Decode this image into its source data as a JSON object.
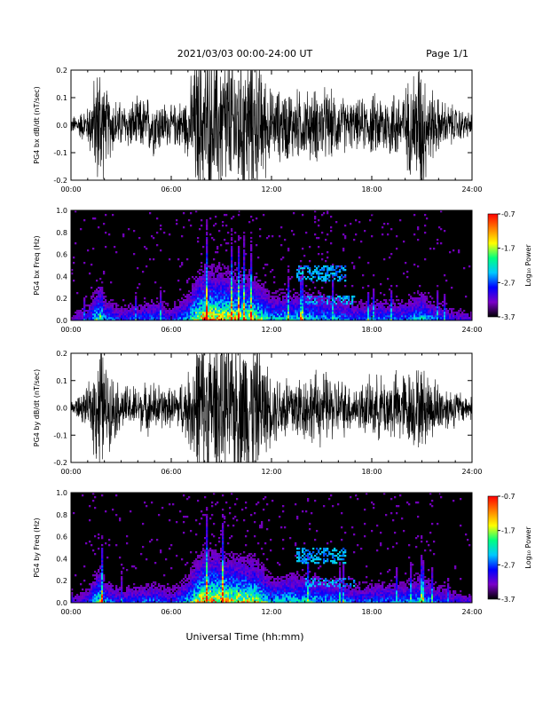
{
  "header": {
    "title": "2021/03/03  00:00-24:00 UT",
    "page": "Page 1/1"
  },
  "footer": {
    "xlabel": "Universal Time (hh:mm)"
  },
  "colors": {
    "background": "#000000",
    "trace": "#000000",
    "colormap": [
      "#000000",
      "#7a00c8",
      "#0000ff",
      "#00c8ff",
      "#00ff80",
      "#ffff00",
      "#ff8000",
      "#ff0000"
    ]
  },
  "chart_data": [
    {
      "type": "line",
      "ylabel": "PG4 bx dB/dt (nT/sec)",
      "xlim": [
        "00:00",
        "24:00"
      ],
      "ylim": [
        -0.2,
        0.2
      ],
      "x_ticks": [
        "00:00",
        "06:00",
        "12:00",
        "18:00",
        "24:00"
      ],
      "y_ticks": [
        "-0.2",
        "-0.1",
        "0.0",
        "0.1",
        "0.2"
      ],
      "series": [
        {
          "x_hours": [
            0,
            1,
            1.8,
            2,
            3,
            4,
            5,
            6,
            7,
            7.5,
            8,
            9,
            10,
            11,
            11.5,
            12,
            13,
            14,
            15,
            16,
            17,
            18,
            19,
            20,
            21,
            21.3,
            22,
            23,
            24
          ],
          "amplitude": [
            0.02,
            0.05,
            0.2,
            0.1,
            0.06,
            0.07,
            0.08,
            0.05,
            0.08,
            0.2,
            0.2,
            0.2,
            0.2,
            0.2,
            0.15,
            0.09,
            0.1,
            0.09,
            0.1,
            0.08,
            0.06,
            0.08,
            0.09,
            0.1,
            0.2,
            0.12,
            0.07,
            0.05,
            0.03
          ]
        }
      ]
    },
    {
      "type": "heatmap",
      "ylabel": "PG4 bx Freq (Hz)",
      "colorbar_label": "Log₁₀ Power",
      "colorbar_ticks": [
        "-0.7",
        "-1.7",
        "-2.7",
        "-3.7"
      ],
      "clim": [
        -3.7,
        -0.7
      ],
      "xlim": [
        "00:00",
        "24:00"
      ],
      "ylim": [
        0,
        1.0
      ],
      "x_ticks": [
        "00:00",
        "06:00",
        "12:00",
        "18:00",
        "24:00"
      ],
      "y_ticks": [
        "0.0",
        "0.2",
        "0.4",
        "0.6",
        "0.8",
        "1.0"
      ],
      "intensity_hours": [
        0,
        1,
        1.8,
        2,
        3,
        4,
        5,
        6,
        7,
        7.5,
        8,
        9,
        10,
        11,
        11.5,
        12,
        13,
        14,
        15,
        16,
        17,
        18,
        19,
        20,
        21,
        21.3,
        22,
        23,
        24
      ],
      "intensity": [
        0.2,
        0.35,
        0.8,
        0.5,
        0.35,
        0.4,
        0.45,
        0.35,
        0.55,
        0.85,
        1.0,
        0.95,
        0.9,
        0.85,
        0.7,
        0.55,
        0.6,
        0.6,
        0.55,
        0.5,
        0.4,
        0.45,
        0.45,
        0.45,
        0.6,
        0.5,
        0.4,
        0.3,
        0.25
      ],
      "band_features": [
        {
          "hours": [
            13.5,
            16.5
          ],
          "freq": [
            0.35,
            0.5
          ]
        },
        {
          "hours": [
            14,
            17
          ],
          "freq": [
            0.15,
            0.22
          ]
        }
      ]
    },
    {
      "type": "line",
      "ylabel": "PG4 by dB/dt (nT/sec)",
      "xlim": [
        "00:00",
        "24:00"
      ],
      "ylim": [
        -0.2,
        0.2
      ],
      "x_ticks": [
        "00:00",
        "06:00",
        "12:00",
        "18:00",
        "24:00"
      ],
      "y_ticks": [
        "-0.2",
        "-0.1",
        "0.0",
        "0.1",
        "0.2"
      ],
      "series": [
        {
          "x_hours": [
            0,
            1,
            1.8,
            2,
            3,
            4,
            5,
            6,
            7,
            7.5,
            8,
            9,
            10,
            11,
            11.5,
            12,
            13,
            14,
            15,
            16,
            17,
            18,
            19,
            20,
            21,
            21.3,
            22,
            23,
            24
          ],
          "amplitude": [
            0.02,
            0.05,
            0.2,
            0.12,
            0.06,
            0.06,
            0.07,
            0.05,
            0.09,
            0.2,
            0.2,
            0.2,
            0.2,
            0.2,
            0.14,
            0.09,
            0.1,
            0.09,
            0.1,
            0.08,
            0.06,
            0.08,
            0.09,
            0.1,
            0.11,
            0.1,
            0.07,
            0.05,
            0.03
          ]
        }
      ]
    },
    {
      "type": "heatmap",
      "ylabel": "PG4 by Freq (Hz)",
      "colorbar_label": "Log₁₀ Power",
      "colorbar_ticks": [
        "-0.7",
        "-1.7",
        "-2.7",
        "-3.7"
      ],
      "clim": [
        -3.7,
        -0.7
      ],
      "xlim": [
        "00:00",
        "24:00"
      ],
      "ylim": [
        0,
        1.0
      ],
      "x_ticks": [
        "00:00",
        "06:00",
        "12:00",
        "18:00",
        "24:00"
      ],
      "y_ticks": [
        "0.0",
        "0.2",
        "0.4",
        "0.6",
        "0.8",
        "1.0"
      ],
      "intensity_hours": [
        0,
        1,
        1.8,
        2,
        3,
        4,
        5,
        6,
        7,
        7.5,
        8,
        9,
        10,
        11,
        11.5,
        12,
        13,
        14,
        15,
        16,
        17,
        18,
        19,
        20,
        21,
        21.3,
        22,
        23,
        24
      ],
      "intensity": [
        0.2,
        0.35,
        0.8,
        0.5,
        0.35,
        0.4,
        0.45,
        0.35,
        0.55,
        0.85,
        1.0,
        0.95,
        0.9,
        0.85,
        0.7,
        0.55,
        0.6,
        0.6,
        0.55,
        0.5,
        0.4,
        0.45,
        0.45,
        0.45,
        0.6,
        0.5,
        0.4,
        0.3,
        0.25
      ],
      "band_features": [
        {
          "hours": [
            13.5,
            16.5
          ],
          "freq": [
            0.35,
            0.5
          ]
        },
        {
          "hours": [
            14,
            17
          ],
          "freq": [
            0.15,
            0.22
          ]
        }
      ]
    }
  ]
}
